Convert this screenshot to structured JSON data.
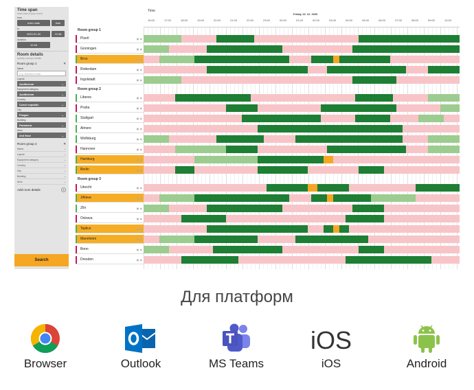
{
  "sidebar": {
    "time_span_title": "Time span",
    "time_span_hint": "enter time of your event",
    "from_label": "from",
    "enter_date": "enter date",
    "time_btn": "time",
    "to_label": "to",
    "to_date": "2020-01-20",
    "to_time": "10:48",
    "duration_label": "duration",
    "duration_value": "10:48",
    "room_details_title": "Room details",
    "room_details_hint": "specify room(s) details",
    "group1_label": "Room group 1",
    "name_label": "Name",
    "name_placeholder": "e.g. Azution room",
    "layout_label": "Layout",
    "layout_value": "Auditorium",
    "equip_label": "Equipment category",
    "equip_value": "Auditorium",
    "country_label": "Country",
    "country_value": "Czech republic",
    "city_label": "City",
    "city_value": "Prague",
    "building_label": "Building",
    "building_value": "Paramera",
    "area_label": "Area",
    "area_value": "2nd floor",
    "group2_label": "Room group 2",
    "group2_fields": [
      "Name",
      "Layout",
      "Equipment category",
      "Country",
      "City",
      "Building",
      "Area"
    ],
    "add_room_label": "Add room details",
    "search_label": "Search"
  },
  "timeline": {
    "time_label": "Time",
    "date_label": "Friday 13. 12. 2020",
    "hours": [
      "16:00",
      "17:00",
      "18:00",
      "19:00",
      "20:00",
      "21:00",
      "22:00",
      "23:00",
      "00:00",
      "01:00",
      "02:00",
      "03:00",
      "04:00",
      "05:00",
      "06:00",
      "07:00",
      "08:00",
      "09:00",
      "10:00"
    ]
  },
  "colors": {
    "busy": "#1e7e34",
    "partial": "#9ccc8f",
    "free": "#f7c5c8",
    "highlight": "#f5a623",
    "selected_room": "#f6ad26"
  },
  "groups": [
    {
      "title": "Room group 1",
      "rooms": [
        {
          "name": "Plzeň",
          "bar": "#c2185b",
          "selected": false
        },
        {
          "name": "Groningen",
          "bar": "#c2185b",
          "selected": false
        },
        {
          "name": "Brno",
          "bar": "#4caf50",
          "selected": true
        },
        {
          "name": "Rotterdam",
          "bar": "#c2185b",
          "selected": false
        },
        {
          "name": "Ingolstadt",
          "bar": "#c2185b",
          "selected": false
        }
      ]
    },
    {
      "title": "Room group 2",
      "rooms": [
        {
          "name": "Liberec",
          "bar": "#4caf50",
          "selected": false
        },
        {
          "name": "Praha",
          "bar": "#c2185b",
          "selected": false
        },
        {
          "name": "Stuttgart",
          "bar": "#4caf50",
          "selected": false
        },
        {
          "name": "Almere",
          "bar": "#4caf50",
          "selected": false
        },
        {
          "name": "Wolfsburg",
          "bar": "#4caf50",
          "selected": false
        },
        {
          "name": "Hannover",
          "bar": "#c2185b",
          "selected": false
        },
        {
          "name": "Hamburg",
          "bar": "#4caf50",
          "selected": true
        },
        {
          "name": "Berlin",
          "bar": "#4caf50",
          "selected": true
        }
      ]
    },
    {
      "title": "Room group 3",
      "rooms": [
        {
          "name": "Utrecht",
          "bar": "#c2185b",
          "selected": false
        },
        {
          "name": "Jihlava",
          "bar": "#4caf50",
          "selected": true
        },
        {
          "name": "Zlín",
          "bar": "#4caf50",
          "selected": false
        },
        {
          "name": "Ostrava",
          "bar": "#c2185b",
          "selected": false
        },
        {
          "name": "Teplice",
          "bar": "#4caf50",
          "selected": true
        },
        {
          "name": "Mannheim",
          "bar": "#4caf50",
          "selected": true
        },
        {
          "name": "Bonn",
          "bar": "#c2185b",
          "selected": false
        },
        {
          "name": "Dresden",
          "bar": "#c2185b",
          "selected": false
        }
      ]
    }
  ],
  "schedule": [
    [
      [
        "p",
        0,
        0.12
      ],
      [
        "f",
        0.12,
        0.23
      ],
      [
        "b",
        0.23,
        0.35
      ],
      [
        "f",
        0.35,
        0.68
      ],
      [
        "b",
        0.68,
        1
      ]
    ],
    [
      [
        "p",
        0,
        0.08
      ],
      [
        "f",
        0.08,
        0.2
      ],
      [
        "b",
        0.2,
        0.44
      ],
      [
        "f",
        0.44,
        0.66
      ],
      [
        "b",
        0.66,
        1
      ]
    ],
    [
      [
        "f",
        0,
        0.05
      ],
      [
        "p",
        0.05,
        0.16
      ],
      [
        "b",
        0.16,
        0.46
      ],
      [
        "f",
        0.46,
        0.53
      ],
      [
        "b",
        0.53,
        0.6
      ],
      [
        "h",
        0.6,
        0.62
      ],
      [
        "b",
        0.62,
        0.78
      ],
      [
        "f",
        0.78,
        1
      ]
    ],
    [
      [
        "f",
        0,
        0.2
      ],
      [
        "b",
        0.2,
        0.52
      ],
      [
        "f",
        0.52,
        0.58
      ],
      [
        "b",
        0.58,
        0.83
      ],
      [
        "f",
        0.83,
        0.9
      ],
      [
        "b",
        0.9,
        1
      ]
    ],
    [
      [
        "p",
        0,
        0.12
      ],
      [
        "f",
        0.12,
        0.66
      ],
      [
        "b",
        0.66,
        0.8
      ],
      [
        "f",
        0.8,
        1
      ]
    ],
    [
      [
        "f",
        0,
        0.1
      ],
      [
        "b",
        0.1,
        0.34
      ],
      [
        "f",
        0.34,
        0.67
      ],
      [
        "b",
        0.67,
        0.79
      ],
      [
        "f",
        0.79,
        0.9
      ],
      [
        "p",
        0.9,
        1
      ]
    ],
    [
      [
        "f",
        0,
        0.26
      ],
      [
        "b",
        0.26,
        0.36
      ],
      [
        "f",
        0.36,
        0.56
      ],
      [
        "b",
        0.56,
        0.8
      ],
      [
        "f",
        0.8,
        0.94
      ],
      [
        "p",
        0.94,
        1
      ]
    ],
    [
      [
        "f",
        0,
        0.31
      ],
      [
        "b",
        0.31,
        0.56
      ],
      [
        "f",
        0.56,
        0.67
      ],
      [
        "b",
        0.67,
        0.78
      ],
      [
        "f",
        0.78,
        0.87
      ],
      [
        "p",
        0.87,
        0.95
      ],
      [
        "f",
        0.95,
        1
      ]
    ],
    [
      [
        "f",
        0,
        0.36
      ],
      [
        "b",
        0.36,
        0.82
      ],
      [
        "f",
        0.82,
        1
      ]
    ],
    [
      [
        "p",
        0,
        0.08
      ],
      [
        "f",
        0.08,
        0.23
      ],
      [
        "b",
        0.23,
        0.38
      ],
      [
        "f",
        0.38,
        0.48
      ],
      [
        "b",
        0.48,
        0.82
      ],
      [
        "f",
        0.82,
        0.9
      ],
      [
        "p",
        0.9,
        1
      ]
    ],
    [
      [
        "f",
        0,
        0.1
      ],
      [
        "p",
        0.1,
        0.26
      ],
      [
        "b",
        0.26,
        0.36
      ],
      [
        "f",
        0.36,
        0.58
      ],
      [
        "b",
        0.58,
        0.83
      ],
      [
        "f",
        0.83,
        0.9
      ],
      [
        "p",
        0.9,
        1
      ]
    ],
    [
      [
        "f",
        0,
        0.16
      ],
      [
        "p",
        0.16,
        0.36
      ],
      [
        "b",
        0.36,
        0.57
      ],
      [
        "h",
        0.57,
        0.6
      ],
      [
        "f",
        0.6,
        1
      ]
    ],
    [
      [
        "f",
        0,
        0.1
      ],
      [
        "b",
        0.1,
        0.16
      ],
      [
        "f",
        0.16,
        0.36
      ],
      [
        "b",
        0.36,
        0.52
      ],
      [
        "f",
        0.52,
        0.68
      ],
      [
        "b",
        0.68,
        0.76
      ],
      [
        "f",
        0.76,
        1
      ]
    ],
    [
      [
        "f",
        0,
        0.39
      ],
      [
        "b",
        0.39,
        0.52
      ],
      [
        "h",
        0.52,
        0.55
      ],
      [
        "b",
        0.55,
        0.65
      ],
      [
        "f",
        0.65,
        0.86
      ],
      [
        "b",
        0.86,
        1
      ]
    ],
    [
      [
        "f",
        0,
        0.05
      ],
      [
        "p",
        0.05,
        0.16
      ],
      [
        "b",
        0.16,
        0.46
      ],
      [
        "f",
        0.46,
        0.53
      ],
      [
        "b",
        0.53,
        0.58
      ],
      [
        "h",
        0.58,
        0.6
      ],
      [
        "b",
        0.6,
        0.72
      ],
      [
        "p",
        0.72,
        0.86
      ],
      [
        "f",
        0.86,
        1
      ]
    ],
    [
      [
        "p",
        0,
        0.08
      ],
      [
        "f",
        0.08,
        0.2
      ],
      [
        "b",
        0.2,
        0.44
      ],
      [
        "f",
        0.44,
        0.66
      ],
      [
        "b",
        0.66,
        0.76
      ],
      [
        "f",
        0.76,
        1
      ]
    ],
    [
      [
        "f",
        0,
        0.12
      ],
      [
        "b",
        0.12,
        0.26
      ],
      [
        "f",
        0.26,
        0.64
      ],
      [
        "b",
        0.64,
        0.76
      ],
      [
        "f",
        0.76,
        1
      ]
    ],
    [
      [
        "f",
        0,
        0.2
      ],
      [
        "b",
        0.2,
        0.52
      ],
      [
        "f",
        0.52,
        0.57
      ],
      [
        "b",
        0.57,
        0.6
      ],
      [
        "h",
        0.6,
        0.62
      ],
      [
        "b",
        0.62,
        0.65
      ],
      [
        "f",
        0.65,
        1
      ]
    ],
    [
      [
        "f",
        0,
        0.05
      ],
      [
        "p",
        0.05,
        0.16
      ],
      [
        "b",
        0.16,
        0.36
      ],
      [
        "f",
        0.36,
        0.48
      ],
      [
        "b",
        0.48,
        0.71
      ],
      [
        "f",
        0.71,
        1
      ]
    ],
    [
      [
        "p",
        0,
        0.08
      ],
      [
        "f",
        0.08,
        0.22
      ],
      [
        "b",
        0.22,
        0.44
      ],
      [
        "f",
        0.44,
        0.68
      ],
      [
        "b",
        0.68,
        0.76
      ],
      [
        "f",
        0.76,
        1
      ]
    ],
    [
      [
        "f",
        0,
        0.12
      ],
      [
        "b",
        0.12,
        0.3
      ],
      [
        "f",
        0.3,
        0.64
      ],
      [
        "b",
        0.64,
        0.91
      ],
      [
        "f",
        0.91,
        1
      ]
    ]
  ],
  "caption": "Для платформ",
  "platforms": [
    {
      "label": "Browser",
      "icon": "chrome-icon"
    },
    {
      "label": "Outlook",
      "icon": "outlook-icon"
    },
    {
      "label": "MS Teams",
      "icon": "teams-icon"
    },
    {
      "label": "iOS",
      "icon": "ios-icon"
    },
    {
      "label": "Android",
      "icon": "android-icon"
    }
  ]
}
